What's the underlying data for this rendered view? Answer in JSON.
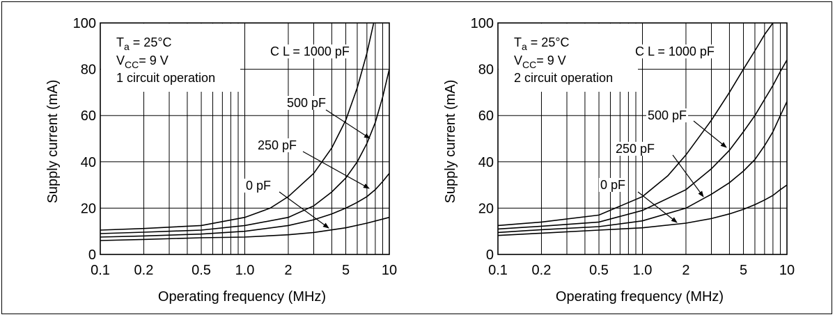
{
  "chart_data": [
    {
      "type": "line",
      "xlabel": "Operating frequency (MHz)",
      "ylabel": "Supply current (mA)",
      "x_scale": "log",
      "xlim": [
        0.1,
        10
      ],
      "ylim": [
        0,
        100
      ],
      "xticks": [
        "0.1",
        "0.2",
        "0.5",
        "1.0",
        "2",
        "5",
        "10"
      ],
      "yticks": [
        "0",
        "20",
        "40",
        "60",
        "80",
        "100"
      ],
      "conditions": {
        "ta_symbol": "T",
        "ta_sub": "a",
        "ta_value": " = 25°C",
        "vcc_symbol": "V",
        "vcc_sub": "CC",
        "vcc_value": "= 9 V",
        "mode": "1 circuit operation"
      },
      "series": [
        {
          "name": "C L = 1000 pF",
          "x": [
            0.1,
            0.2,
            0.5,
            1.0,
            1.5,
            2,
            3,
            4,
            5,
            6,
            7,
            7.8
          ],
          "y": [
            10.5,
            11.2,
            12.5,
            16,
            20,
            25,
            35,
            46,
            58,
            72,
            87,
            100
          ]
        },
        {
          "name": "500 pF",
          "x": [
            0.1,
            0.2,
            0.5,
            1.0,
            2,
            3,
            4,
            5,
            6,
            7,
            8,
            9,
            10
          ],
          "y": [
            9,
            9.6,
            10.5,
            12.5,
            16,
            21,
            27,
            33,
            40,
            48,
            57,
            68,
            80
          ]
        },
        {
          "name": "250 pF",
          "x": [
            0.1,
            0.2,
            0.5,
            1.0,
            2,
            3,
            4,
            5,
            6,
            7,
            8,
            9,
            10
          ],
          "y": [
            7.5,
            8,
            8.8,
            10,
            12.5,
            15,
            17.5,
            20,
            22.5,
            25,
            28,
            31.5,
            35
          ]
        },
        {
          "name": "0 pF",
          "x": [
            0.1,
            0.2,
            0.5,
            1.0,
            2,
            3,
            5,
            7,
            10
          ],
          "y": [
            6,
            6.5,
            7.2,
            7.5,
            8.5,
            9.5,
            11.5,
            13.5,
            16
          ]
        }
      ]
    },
    {
      "type": "line",
      "xlabel": "Operating frequency (MHz)",
      "ylabel": "Supply current (mA)",
      "x_scale": "log",
      "xlim": [
        0.1,
        10
      ],
      "ylim": [
        0,
        100
      ],
      "xticks": [
        "0.1",
        "0.2",
        "0.5",
        "1.0",
        "2",
        "5",
        "10"
      ],
      "yticks": [
        "0",
        "20",
        "40",
        "60",
        "80",
        "100"
      ],
      "conditions": {
        "ta_symbol": "T",
        "ta_sub": "a",
        "ta_value": " = 25°C",
        "vcc_symbol": "V",
        "vcc_sub": "CC",
        "vcc_value": "= 9 V",
        "mode": "2 circuit operation"
      },
      "series": [
        {
          "name": "C L = 1000 pF",
          "x": [
            0.1,
            0.2,
            0.5,
            1.0,
            1.5,
            2,
            3,
            4,
            5,
            6,
            7,
            8
          ],
          "y": [
            12.5,
            14,
            17,
            25,
            34,
            43,
            58,
            70,
            80,
            88,
            95,
            100
          ]
        },
        {
          "name": "500 pF",
          "x": [
            0.1,
            0.2,
            0.5,
            1.0,
            2,
            3,
            4,
            5,
            6,
            7,
            8,
            9,
            10
          ],
          "y": [
            11,
            12.2,
            14,
            19,
            28,
            37,
            45,
            53,
            60,
            67,
            73,
            79,
            84
          ]
        },
        {
          "name": "250 pF",
          "x": [
            0.1,
            0.2,
            0.5,
            1.0,
            2,
            3,
            4,
            5,
            6,
            7,
            8,
            9,
            10
          ],
          "y": [
            9.5,
            10.7,
            12,
            14.5,
            20,
            26,
            31,
            36,
            41,
            47,
            53,
            60,
            66
          ]
        },
        {
          "name": "0 pF",
          "x": [
            0.1,
            0.2,
            0.5,
            1.0,
            2,
            3,
            4,
            5,
            6,
            7,
            8,
            9,
            10
          ],
          "y": [
            8.2,
            9.2,
            10.5,
            11.5,
            13.5,
            15.5,
            17.5,
            19.5,
            21.5,
            23.5,
            25.5,
            28,
            30
          ]
        }
      ]
    }
  ]
}
